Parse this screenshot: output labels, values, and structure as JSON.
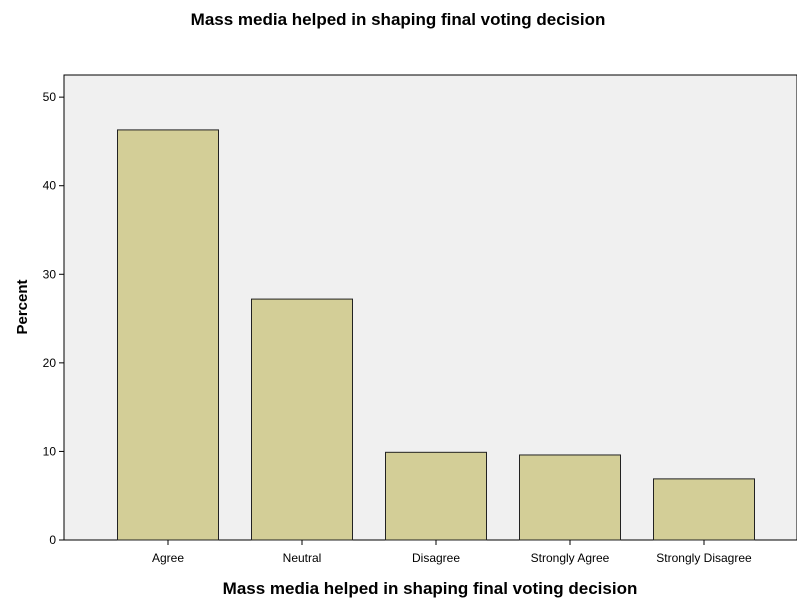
{
  "chart_data": {
    "type": "bar",
    "title": "Mass media helped in shaping final voting decision",
    "xlabel": "Mass media helped in shaping final voting decision",
    "ylabel": "Percent",
    "categories": [
      "Agree",
      "Neutral",
      "Disagree",
      "Strongly Agree",
      "Strongly Disagree"
    ],
    "values": [
      46.3,
      27.2,
      9.9,
      9.6,
      6.9
    ],
    "ylim": [
      0,
      52.5
    ],
    "yticks": [
      0,
      10,
      20,
      30,
      40,
      50
    ],
    "grid": false,
    "legend": "none",
    "colors": {
      "bar_fill": "#d3ce97",
      "bar_stroke": "#222222",
      "plot_background": "#f0f0f0",
      "axis": "#000000"
    }
  }
}
